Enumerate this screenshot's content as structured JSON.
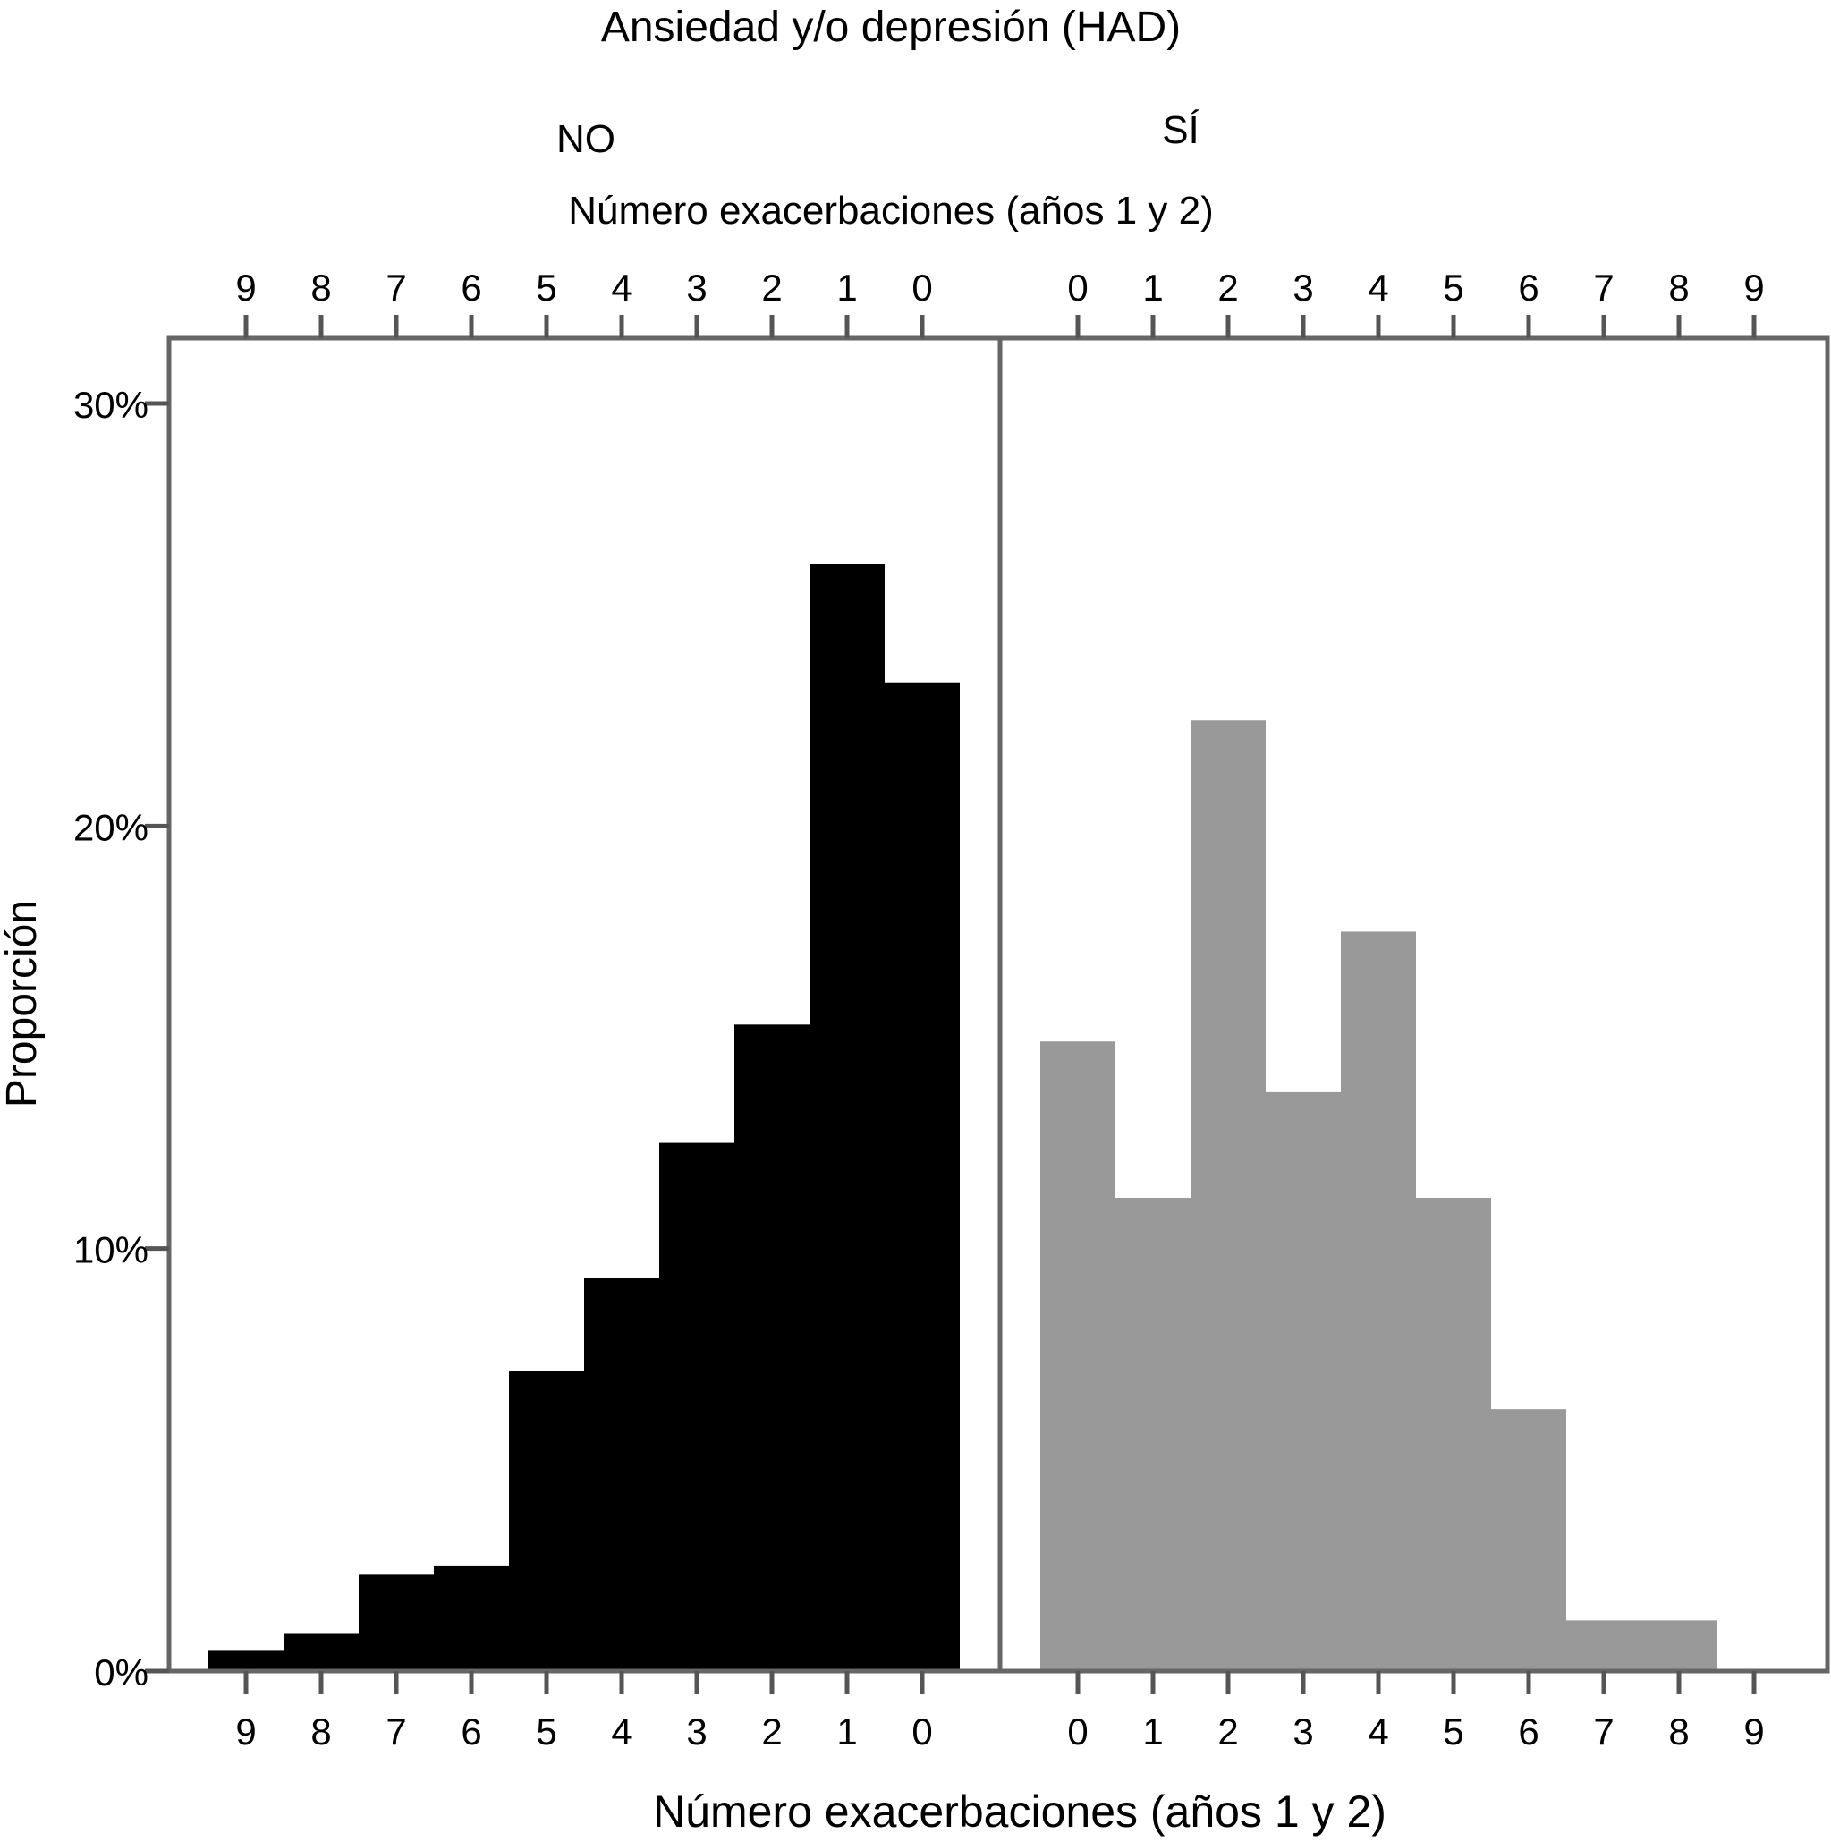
{
  "chart_data": {
    "type": "bar",
    "title": "Ansiedad y/o depresión (HAD)",
    "xlabel": "Número exacerbaciones (años 1 y 2)",
    "top_xlabel": "Número exacerbaciones (años 1 y 2)",
    "ylabel": "Proporción",
    "ylim": [
      0,
      30
    ],
    "y_ticks": [
      "0%",
      "10%",
      "20%",
      "30%"
    ],
    "y_tick_values": [
      0,
      10,
      20,
      30
    ],
    "grid": false,
    "legend": "none",
    "panels": [
      {
        "name": "NO",
        "color": "#000000",
        "categories": [
          "9",
          "8",
          "7",
          "6",
          "5",
          "4",
          "3",
          "2",
          "1",
          "0"
        ],
        "values": [
          0.5,
          0.9,
          2.3,
          2.5,
          7.1,
          9.3,
          12.5,
          15.3,
          26.2,
          23.4
        ]
      },
      {
        "name": "SÍ",
        "color": "#999999",
        "categories": [
          "0",
          "1",
          "2",
          "3",
          "4",
          "5",
          "6",
          "7",
          "8",
          "9"
        ],
        "values": [
          14.9,
          11.2,
          22.5,
          13.7,
          17.5,
          11.2,
          6.2,
          1.2,
          1.2,
          0
        ]
      }
    ]
  }
}
